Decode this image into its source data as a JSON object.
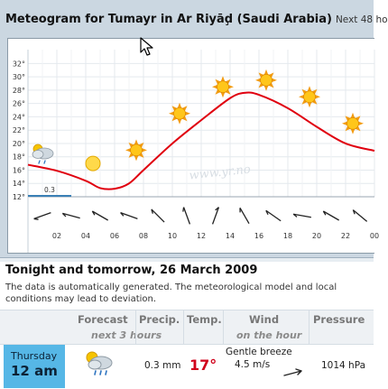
{
  "header": {
    "title": "Meteogram for Tumayr in Ar Riyāḑ (Saudi Arabia)",
    "subtitle": "Next 48 ho"
  },
  "chart_data": {
    "type": "line",
    "x_tick_labels": [
      "02",
      "04",
      "06",
      "08",
      "10",
      "12",
      "14",
      "16",
      "18",
      "20",
      "22",
      "00"
    ],
    "y_tick_labels": [
      "12°",
      "14°",
      "16°",
      "18°",
      "20°",
      "22°",
      "24°",
      "26°",
      "28°",
      "30°",
      "32°"
    ],
    "ylim": [
      12,
      33
    ],
    "series": [
      {
        "x_hours": [
          0,
          2,
          4,
          5,
          6,
          7,
          8,
          10,
          12,
          14,
          15,
          16,
          18,
          20,
          22,
          24
        ],
        "values": [
          16.8,
          15.9,
          14.4,
          13.3,
          13.2,
          14.0,
          16.0,
          20.0,
          23.5,
          26.8,
          27.6,
          27.3,
          25.3,
          22.5,
          20.0,
          18.9
        ]
      }
    ],
    "precipitation": {
      "value_label": "0.3",
      "hours": [
        0,
        3
      ],
      "mm": 0.3
    },
    "symbols": [
      {
        "hour": 1,
        "temp": 18.5,
        "icon": "partly-cloudy-rain-icon"
      },
      {
        "hour": 4.5,
        "temp": 17.0,
        "icon": "sun-haze-icon"
      },
      {
        "hour": 7.5,
        "temp": 19.0,
        "icon": "sun-icon"
      },
      {
        "hour": 10.5,
        "temp": 24.5,
        "icon": "sun-icon"
      },
      {
        "hour": 13.5,
        "temp": 28.5,
        "icon": "sun-icon"
      },
      {
        "hour": 16.5,
        "temp": 29.5,
        "icon": "sun-icon"
      },
      {
        "hour": 19.5,
        "temp": 27.0,
        "icon": "sun-icon"
      },
      {
        "hour": 22.5,
        "temp": 23.0,
        "icon": "sun-icon"
      }
    ],
    "wind_directions_deg": [
      250,
      285,
      300,
      290,
      315,
      340,
      20,
      330,
      305,
      280,
      300,
      310
    ],
    "watermark": "www.yr.no"
  },
  "section": {
    "title": "Tonight and tomorrow, 26 March 2009",
    "notice": "The data is automatically generated. The meteorological model and local conditions may lead to deviation."
  },
  "table": {
    "headers": {
      "forecast": "Forecast",
      "forecast_sub": "next 3 hours",
      "precip": "Precip.",
      "temp": "Temp.",
      "wind": "Wind",
      "wind_sub": "on the hour",
      "pressure": "Pressure"
    },
    "row": {
      "day": "Thursday",
      "time": "12 am",
      "forecast_icon": "partly-cloudy-rain-icon",
      "precip": "0.3 mm",
      "temp": "17°",
      "wind_desc": "Gentle breeze",
      "wind_speed": "4.5 m/s",
      "pressure": "1014 hPa"
    }
  },
  "colors": {
    "temp_line": "#e0000f",
    "precip_bar": "#3a7fb5",
    "accent_day": "#56b7e6",
    "temp_text": "#d0021b"
  }
}
